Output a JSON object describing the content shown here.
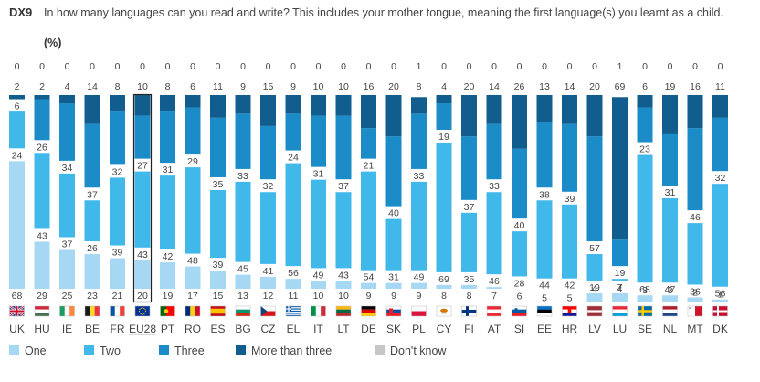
{
  "header": {
    "code": "DX9",
    "question": "In how many languages can you read and write? This includes your mother tongue, meaning the first language(s) you learnt as a child.",
    "unit": "(%)"
  },
  "chart_data": {
    "type": "bar",
    "stacked": true,
    "orientation": "vertical",
    "categories": [
      "UK",
      "HU",
      "IE",
      "BE",
      "FR",
      "EU28",
      "PT",
      "RO",
      "ES",
      "BG",
      "CZ",
      "EL",
      "IT",
      "LT",
      "DE",
      "SK",
      "PL",
      "CY",
      "FI",
      "AT",
      "SI",
      "EE",
      "HR",
      "LV",
      "LU",
      "SE",
      "NL",
      "MT",
      "DK"
    ],
    "highlight_category": "EU28",
    "series": [
      {
        "name": "One",
        "color": "#a6d8f3",
        "values": [
          68,
          29,
          25,
          23,
          21,
          20,
          19,
          17,
          15,
          13,
          12,
          11,
          10,
          10,
          9,
          9,
          9,
          8,
          8,
          7,
          6,
          5,
          5,
          4,
          4,
          3,
          3,
          2,
          1
        ]
      },
      {
        "name": "Two",
        "color": "#41b8ea",
        "values": [
          24,
          43,
          37,
          26,
          39,
          43,
          42,
          48,
          39,
          45,
          41,
          56,
          49,
          43,
          54,
          31,
          49,
          69,
          35,
          46,
          28,
          44,
          42,
          19,
          7,
          68,
          47,
          36,
          56
        ]
      },
      {
        "name": "Three",
        "color": "#1b8cc7",
        "values": [
          6,
          26,
          34,
          37,
          32,
          27,
          31,
          29,
          35,
          33,
          32,
          24,
          31,
          37,
          21,
          40,
          33,
          19,
          37,
          33,
          40,
          38,
          39,
          57,
          19,
          23,
          31,
          46,
          32
        ]
      },
      {
        "name": "More than three",
        "color": "#115e8e",
        "values": [
          2,
          2,
          4,
          14,
          8,
          10,
          8,
          6,
          11,
          9,
          15,
          9,
          10,
          10,
          16,
          20,
          8,
          4,
          20,
          14,
          26,
          13,
          14,
          20,
          69,
          6,
          19,
          16,
          11
        ]
      },
      {
        "name": "Don't know",
        "color": "#c6c6c6",
        "values": [
          0,
          0,
          0,
          0,
          0,
          0,
          0,
          0,
          0,
          0,
          0,
          0,
          0,
          0,
          0,
          0,
          1,
          0,
          0,
          0,
          0,
          0,
          0,
          0,
          1,
          0,
          0,
          0,
          0
        ]
      }
    ],
    "ylim": [
      0,
      100
    ]
  },
  "flags": {
    "UK": "uk",
    "HU": "hu",
    "IE": "ie",
    "BE": "be",
    "FR": "fr",
    "EU28": "eu",
    "PT": "pt",
    "RO": "ro",
    "ES": "es",
    "BG": "bg",
    "CZ": "cz",
    "EL": "el",
    "IT": "it",
    "LT": "lt",
    "DE": "de",
    "SK": "sk",
    "PL": "pl",
    "CY": "cy",
    "FI": "fi",
    "AT": "at",
    "SI": "si",
    "EE": "ee",
    "HR": "hr",
    "LV": "lv",
    "LU": "lu",
    "SE": "se",
    "NL": "nl",
    "MT": "mt",
    "DK": "dk"
  }
}
